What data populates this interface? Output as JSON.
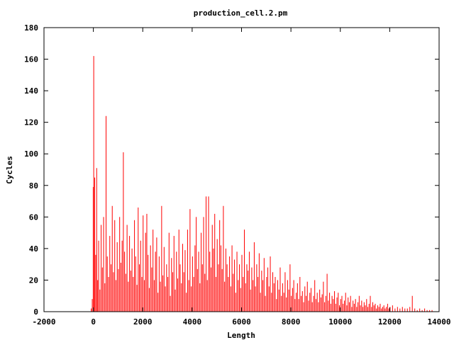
{
  "chart_data": {
    "type": "bar",
    "title": "production_cell.2.pm",
    "xlabel": "Length",
    "ylabel": "Cycles",
    "xlim": [
      -2000,
      14000
    ],
    "ylim": [
      0,
      180
    ],
    "xticks": [
      "-2000",
      "0",
      "2000",
      "4000",
      "6000",
      "8000",
      "10000",
      "12000",
      "14000"
    ],
    "yticks": [
      "0",
      "20",
      "40",
      "60",
      "80",
      "100",
      "120",
      "140",
      "160",
      "180"
    ],
    "grid": false,
    "legend": "none",
    "series_color": "#ff0000",
    "bin_width": 20,
    "points": [
      [
        -100,
        2
      ],
      [
        -60,
        8
      ],
      [
        -20,
        79
      ],
      [
        0,
        162
      ],
      [
        40,
        85
      ],
      [
        80,
        36
      ],
      [
        120,
        91
      ],
      [
        160,
        20
      ],
      [
        200,
        45
      ],
      [
        250,
        14
      ],
      [
        300,
        55
      ],
      [
        350,
        28
      ],
      [
        400,
        60
      ],
      [
        450,
        18
      ],
      [
        500,
        124
      ],
      [
        550,
        35
      ],
      [
        600,
        22
      ],
      [
        650,
        48
      ],
      [
        700,
        30
      ],
      [
        750,
        67
      ],
      [
        800,
        25
      ],
      [
        850,
        58
      ],
      [
        900,
        20
      ],
      [
        950,
        44
      ],
      [
        1000,
        27
      ],
      [
        1050,
        60
      ],
      [
        1100,
        31
      ],
      [
        1150,
        45
      ],
      [
        1200,
        101
      ],
      [
        1250,
        38
      ],
      [
        1300,
        24
      ],
      [
        1350,
        55
      ],
      [
        1400,
        19
      ],
      [
        1450,
        48
      ],
      [
        1500,
        26
      ],
      [
        1550,
        40
      ],
      [
        1600,
        22
      ],
      [
        1650,
        58
      ],
      [
        1700,
        35
      ],
      [
        1750,
        17
      ],
      [
        1800,
        66
      ],
      [
        1850,
        30
      ],
      [
        1900,
        45
      ],
      [
        1950,
        22
      ],
      [
        2000,
        61
      ],
      [
        2050,
        20
      ],
      [
        2100,
        50
      ],
      [
        2150,
        62
      ],
      [
        2200,
        36
      ],
      [
        2250,
        15
      ],
      [
        2300,
        42
      ],
      [
        2350,
        28
      ],
      [
        2400,
        52
      ],
      [
        2450,
        20
      ],
      [
        2500,
        38
      ],
      [
        2550,
        47
      ],
      [
        2600,
        12
      ],
      [
        2650,
        35
      ],
      [
        2700,
        19
      ],
      [
        2750,
        67
      ],
      [
        2800,
        23
      ],
      [
        2850,
        41
      ],
      [
        2900,
        16
      ],
      [
        2950,
        30
      ],
      [
        3000,
        22
      ],
      [
        3050,
        50
      ],
      [
        3100,
        10
      ],
      [
        3150,
        34
      ],
      [
        3200,
        25
      ],
      [
        3250,
        48
      ],
      [
        3300,
        14
      ],
      [
        3350,
        38
      ],
      [
        3400,
        21
      ],
      [
        3450,
        52
      ],
      [
        3500,
        30
      ],
      [
        3550,
        18
      ],
      [
        3600,
        43
      ],
      [
        3650,
        25
      ],
      [
        3700,
        39
      ],
      [
        3750,
        12
      ],
      [
        3800,
        52
      ],
      [
        3850,
        20
      ],
      [
        3900,
        65
      ],
      [
        3950,
        16
      ],
      [
        4000,
        35
      ],
      [
        4050,
        22
      ],
      [
        4100,
        42
      ],
      [
        4150,
        60
      ],
      [
        4200,
        27
      ],
      [
        4250,
        38
      ],
      [
        4300,
        18
      ],
      [
        4350,
        50
      ],
      [
        4400,
        30
      ],
      [
        4450,
        60
      ],
      [
        4500,
        24
      ],
      [
        4550,
        73
      ],
      [
        4600,
        20
      ],
      [
        4650,
        73
      ],
      [
        4700,
        38
      ],
      [
        4750,
        28
      ],
      [
        4800,
        55
      ],
      [
        4850,
        40
      ],
      [
        4900,
        62
      ],
      [
        4950,
        22
      ],
      [
        5000,
        46
      ],
      [
        5050,
        30
      ],
      [
        5100,
        58
      ],
      [
        5150,
        42
      ],
      [
        5200,
        27
      ],
      [
        5250,
        67
      ],
      [
        5300,
        19
      ],
      [
        5350,
        40
      ],
      [
        5400,
        30
      ],
      [
        5450,
        22
      ],
      [
        5500,
        35
      ],
      [
        5550,
        16
      ],
      [
        5600,
        42
      ],
      [
        5650,
        24
      ],
      [
        5700,
        33
      ],
      [
        5750,
        12
      ],
      [
        5800,
        38
      ],
      [
        5850,
        20
      ],
      [
        5900,
        30
      ],
      [
        5950,
        15
      ],
      [
        6000,
        36
      ],
      [
        6050,
        22
      ],
      [
        6100,
        52
      ],
      [
        6150,
        18
      ],
      [
        6200,
        30
      ],
      [
        6250,
        26
      ],
      [
        6300,
        38
      ],
      [
        6350,
        14
      ],
      [
        6400,
        28
      ],
      [
        6450,
        20
      ],
      [
        6500,
        44
      ],
      [
        6550,
        16
      ],
      [
        6600,
        30
      ],
      [
        6650,
        22
      ],
      [
        6700,
        37
      ],
      [
        6750,
        12
      ],
      [
        6800,
        26
      ],
      [
        6850,
        20
      ],
      [
        6900,
        34
      ],
      [
        6950,
        10
      ],
      [
        7000,
        22
      ],
      [
        7050,
        28
      ],
      [
        7100,
        16
      ],
      [
        7150,
        35
      ],
      [
        7200,
        12
      ],
      [
        7250,
        25
      ],
      [
        7300,
        18
      ],
      [
        7350,
        22
      ],
      [
        7400,
        8
      ],
      [
        7450,
        20
      ],
      [
        7500,
        14
      ],
      [
        7550,
        28
      ],
      [
        7600,
        10
      ],
      [
        7650,
        18
      ],
      [
        7700,
        12
      ],
      [
        7750,
        25
      ],
      [
        7800,
        9
      ],
      [
        7850,
        20
      ],
      [
        7900,
        14
      ],
      [
        7950,
        30
      ],
      [
        8000,
        10
      ],
      [
        8050,
        15
      ],
      [
        8100,
        20
      ],
      [
        8150,
        8
      ],
      [
        8200,
        12
      ],
      [
        8250,
        18
      ],
      [
        8300,
        8
      ],
      [
        8350,
        22
      ],
      [
        8400,
        10
      ],
      [
        8450,
        13
      ],
      [
        8500,
        6
      ],
      [
        8550,
        16
      ],
      [
        8600,
        10
      ],
      [
        8650,
        19
      ],
      [
        8700,
        7
      ],
      [
        8750,
        12
      ],
      [
        8800,
        15
      ],
      [
        8850,
        6
      ],
      [
        8900,
        10
      ],
      [
        8950,
        20
      ],
      [
        9000,
        8
      ],
      [
        9050,
        12
      ],
      [
        9100,
        6
      ],
      [
        9150,
        14
      ],
      [
        9200,
        9
      ],
      [
        9250,
        11
      ],
      [
        9300,
        19
      ],
      [
        9350,
        6
      ],
      [
        9400,
        10
      ],
      [
        9450,
        24
      ],
      [
        9500,
        7
      ],
      [
        9550,
        12
      ],
      [
        9600,
        5
      ],
      [
        9650,
        10
      ],
      [
        9700,
        8
      ],
      [
        9750,
        13
      ],
      [
        9800,
        5
      ],
      [
        9850,
        9
      ],
      [
        9900,
        12
      ],
      [
        9950,
        4
      ],
      [
        10000,
        8
      ],
      [
        10050,
        10
      ],
      [
        10100,
        5
      ],
      [
        10150,
        7
      ],
      [
        10200,
        12
      ],
      [
        10250,
        4
      ],
      [
        10300,
        9
      ],
      [
        10350,
        6
      ],
      [
        10400,
        10
      ],
      [
        10450,
        3
      ],
      [
        10500,
        7
      ],
      [
        10550,
        5
      ],
      [
        10600,
        8
      ],
      [
        10650,
        3
      ],
      [
        10700,
        6
      ],
      [
        10750,
        10
      ],
      [
        10800,
        4
      ],
      [
        10850,
        7
      ],
      [
        10900,
        3
      ],
      [
        10950,
        6
      ],
      [
        11000,
        4
      ],
      [
        11050,
        8
      ],
      [
        11100,
        3
      ],
      [
        11150,
        5
      ],
      [
        11200,
        10
      ],
      [
        11250,
        3
      ],
      [
        11300,
        6
      ],
      [
        11350,
        4
      ],
      [
        11400,
        5
      ],
      [
        11450,
        2
      ],
      [
        11500,
        4
      ],
      [
        11550,
        3
      ],
      [
        11600,
        5
      ],
      [
        11650,
        2
      ],
      [
        11700,
        3
      ],
      [
        11750,
        4
      ],
      [
        11800,
        2
      ],
      [
        11850,
        3
      ],
      [
        11900,
        5
      ],
      [
        11950,
        2
      ],
      [
        12000,
        3
      ],
      [
        12100,
        4
      ],
      [
        12200,
        2
      ],
      [
        12300,
        3
      ],
      [
        12400,
        2
      ],
      [
        12500,
        3
      ],
      [
        12600,
        2
      ],
      [
        12700,
        2
      ],
      [
        12800,
        3
      ],
      [
        12900,
        10
      ],
      [
        13000,
        2
      ],
      [
        13100,
        1
      ],
      [
        13200,
        2
      ],
      [
        13300,
        1
      ],
      [
        13400,
        2
      ],
      [
        13500,
        1
      ],
      [
        13600,
        1
      ],
      [
        13700,
        1
      ]
    ]
  }
}
